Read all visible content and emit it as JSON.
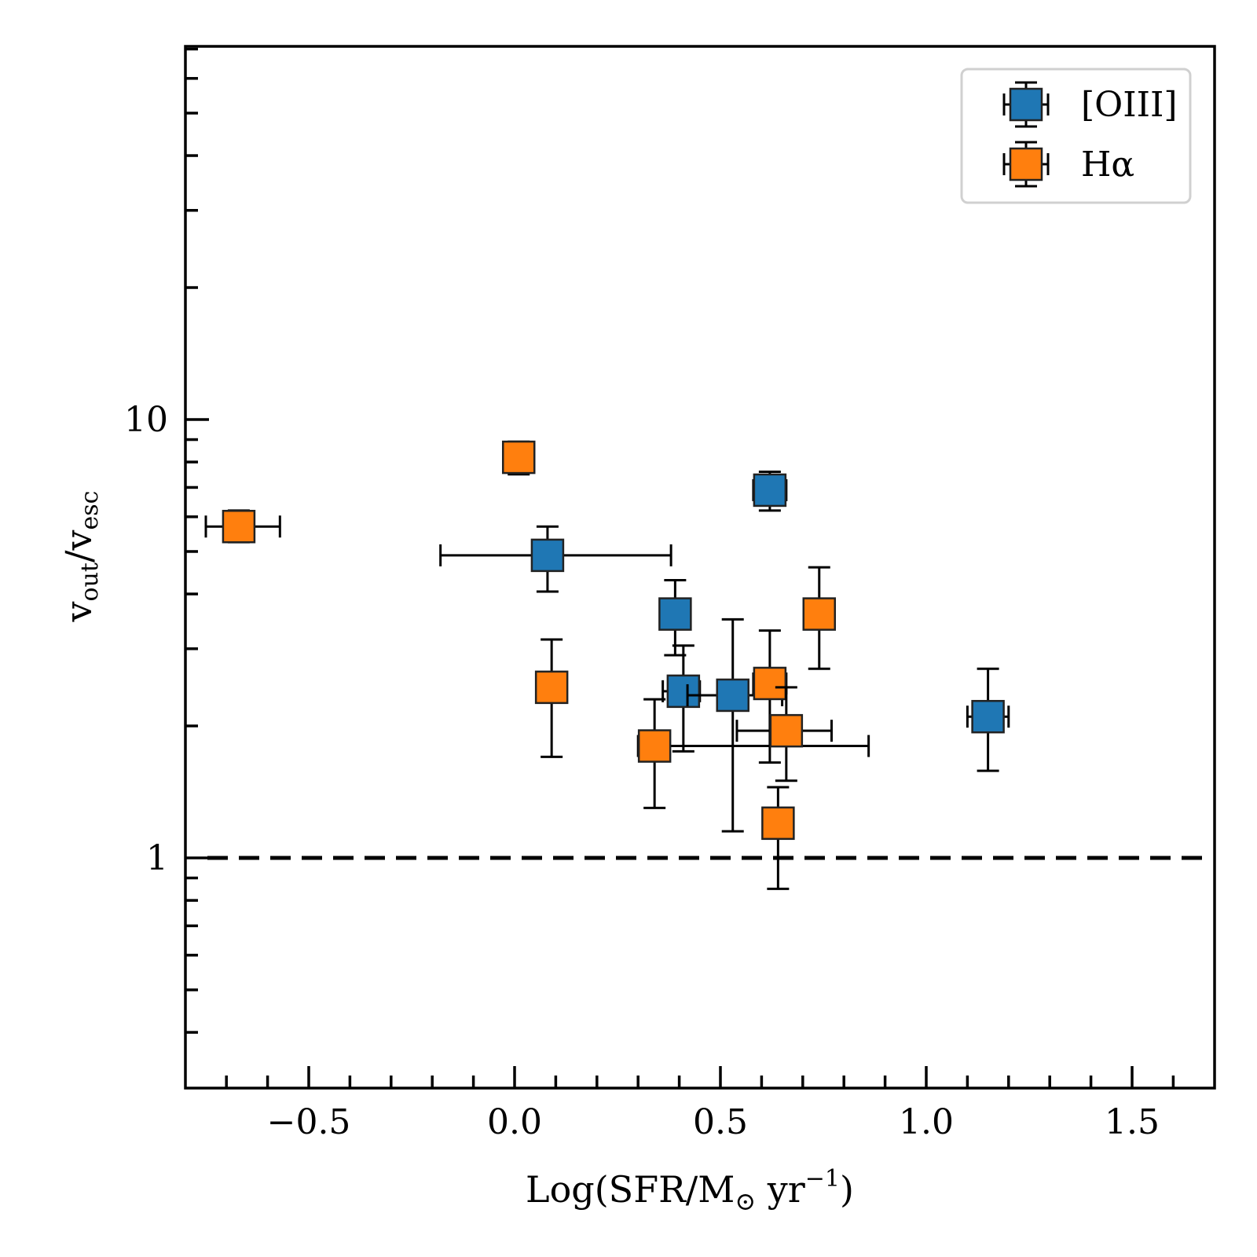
{
  "chart_data": {
    "type": "scatter",
    "title": "",
    "xlabel": {
      "main": "Log(SFR/M",
      "sun": "⊙",
      "unit": " yr",
      "sup": "−1",
      "close": ")"
    },
    "ylabel": {
      "v1": "v",
      "sub1": "out",
      "slash": "/",
      "v2": "v",
      "sub2": "esc"
    },
    "xlim": [
      -0.8,
      1.7
    ],
    "ylim": [
      0.3,
      80
    ],
    "yscale": "log",
    "xticks": [
      -0.5,
      0.0,
      0.5,
      1.0,
      1.5
    ],
    "xtick_labels": [
      "−0.5",
      "0.0",
      "0.5",
      "1.0",
      "1.5"
    ],
    "yticks": [
      1,
      10
    ],
    "ytick_labels": [
      "1",
      "10"
    ],
    "grid": false,
    "legend_position": "top-right",
    "reference_line": {
      "y": 1,
      "style": "dashed",
      "color": "#000000"
    },
    "series": [
      {
        "name": "[OIII]",
        "color": "#1f77b4",
        "points": [
          {
            "x": 0.08,
            "y": 4.9,
            "xlo": -0.18,
            "xhi": 0.38,
            "ylo": 4.05,
            "yhi": 5.7
          },
          {
            "x": 0.62,
            "y": 6.9,
            "xlo": 0.58,
            "xhi": 0.66,
            "ylo": 6.2,
            "yhi": 7.6
          },
          {
            "x": 0.39,
            "y": 3.6,
            "xlo": 0.37,
            "xhi": 0.41,
            "ylo": 2.9,
            "yhi": 4.3
          },
          {
            "x": 0.41,
            "y": 2.4,
            "xlo": 0.36,
            "xhi": 0.45,
            "ylo": 1.75,
            "yhi": 3.05
          },
          {
            "x": 0.53,
            "y": 2.35,
            "xlo": 0.42,
            "xhi": 0.65,
            "ylo": 1.15,
            "yhi": 3.5
          },
          {
            "x": 1.15,
            "y": 2.1,
            "xlo": 1.1,
            "xhi": 1.2,
            "ylo": 1.58,
            "yhi": 2.7
          }
        ]
      },
      {
        "name": "Hα",
        "color": "#ff7f0e",
        "points": [
          {
            "x": -0.67,
            "y": 5.7,
            "xlo": -0.75,
            "xhi": -0.57,
            "ylo": 5.25,
            "yhi": 6.2
          },
          {
            "x": 0.01,
            "y": 8.2,
            "xlo": -0.02,
            "xhi": 0.04,
            "ylo": 7.5,
            "yhi": 8.9
          },
          {
            "x": 0.09,
            "y": 2.45,
            "xlo": 0.06,
            "xhi": 0.12,
            "ylo": 1.7,
            "yhi": 3.15
          },
          {
            "x": 0.34,
            "y": 1.8,
            "xlo": 0.3,
            "xhi": 0.86,
            "ylo": 1.3,
            "yhi": 2.3
          },
          {
            "x": 0.62,
            "y": 2.5,
            "xlo": 0.58,
            "xhi": 0.66,
            "ylo": 1.65,
            "yhi": 3.3
          },
          {
            "x": 0.66,
            "y": 1.95,
            "xlo": 0.54,
            "xhi": 0.77,
            "ylo": 1.5,
            "yhi": 2.45
          },
          {
            "x": 0.74,
            "y": 3.6,
            "xlo": 0.72,
            "xhi": 0.76,
            "ylo": 2.7,
            "yhi": 4.6
          },
          {
            "x": 0.64,
            "y": 1.2,
            "xlo": 0.62,
            "xhi": 0.66,
            "ylo": 0.85,
            "yhi": 1.45
          }
        ]
      }
    ]
  }
}
